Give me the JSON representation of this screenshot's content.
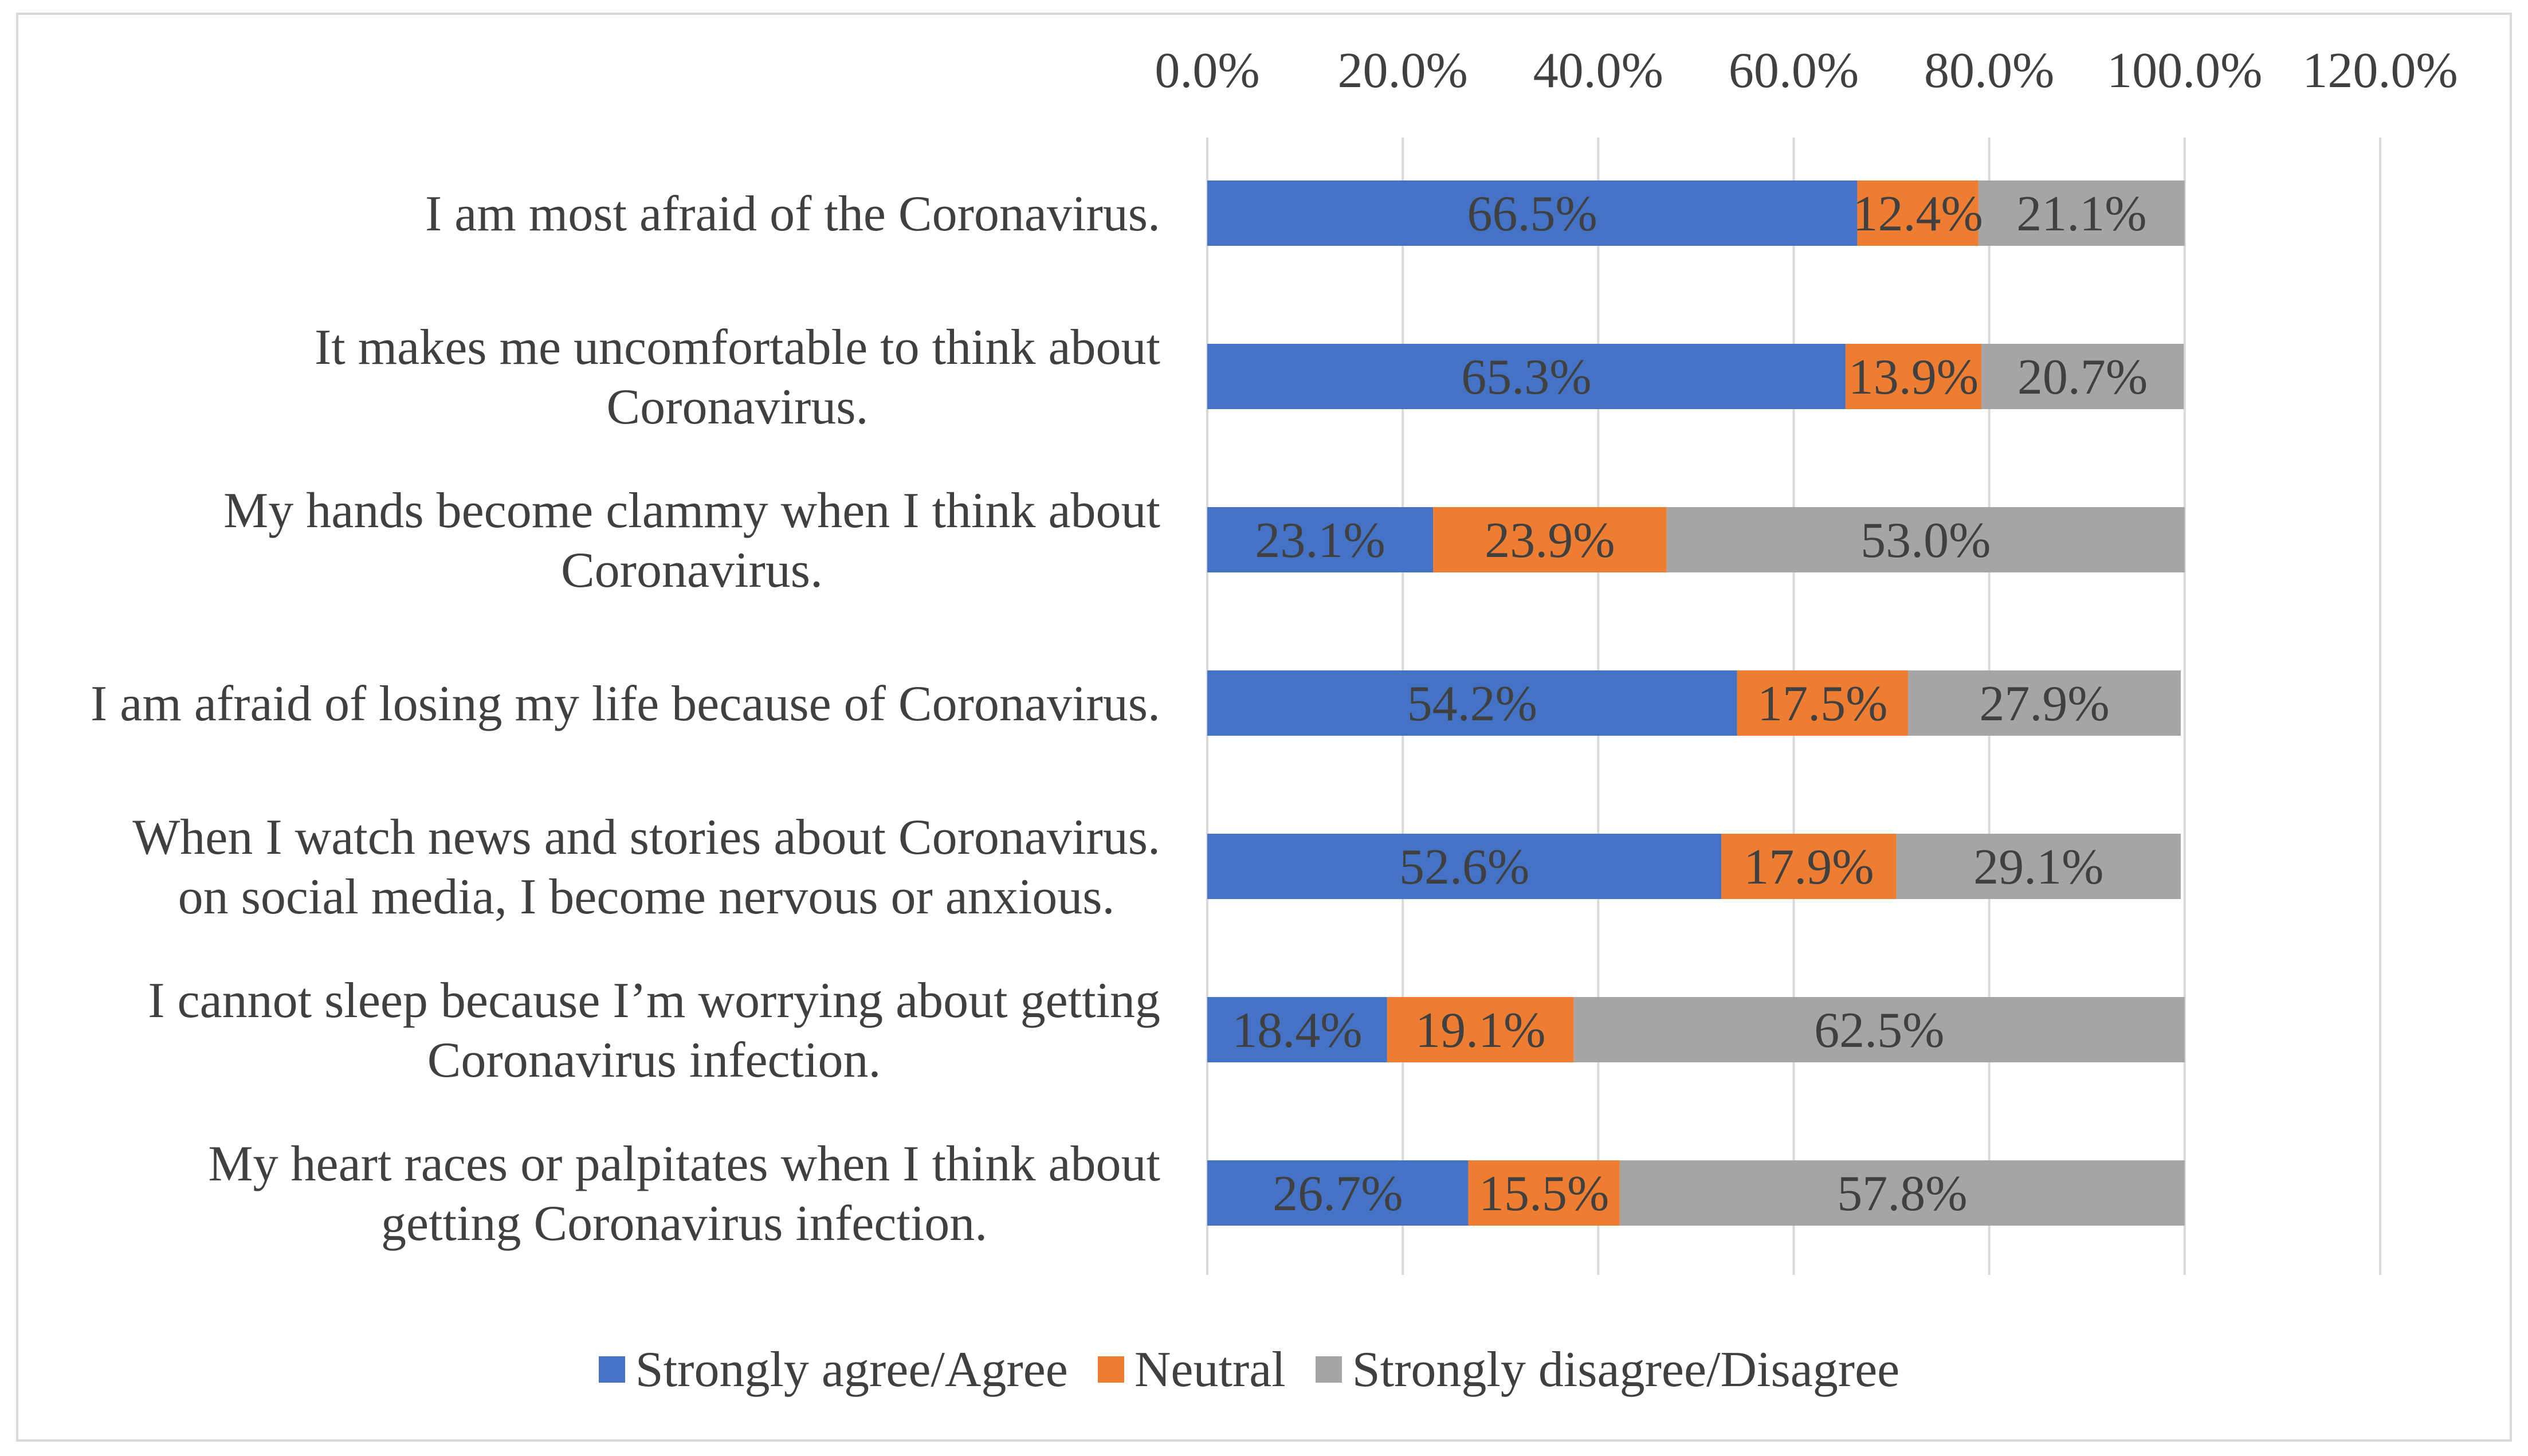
{
  "chart_data": {
    "type": "bar",
    "orientation": "horizontal",
    "stacked": true,
    "title": "",
    "xlabel": "",
    "ylabel": "",
    "xlim": [
      0,
      120
    ],
    "x_ticks": [
      "0.0%",
      "20.0%",
      "40.0%",
      "60.0%",
      "80.0%",
      "100.0%",
      "120.0%"
    ],
    "x_tick_values": [
      0,
      20,
      40,
      60,
      80,
      100,
      120
    ],
    "x_axis_position": "top",
    "grid": true,
    "legend_position": "bottom",
    "categories": [
      [
        "I am most afraid of the Coronavirus."
      ],
      [
        "It makes me uncomfortable to think about",
        "Coronavirus."
      ],
      [
        "My hands become clammy when I think about",
        "Coronavirus."
      ],
      [
        "I am afraid of losing my life because of Coronavirus."
      ],
      [
        "When I watch news and stories about  Coronavirus.",
        "on social media, I become nervous or anxious."
      ],
      [
        "I cannot sleep because I’m worrying about getting",
        "Coronavirus infection."
      ],
      [
        "My heart races or palpitates when I think about",
        "getting  Coronavirus infection."
      ]
    ],
    "series": [
      {
        "name": "Strongly agree/Agree",
        "color": "#4472c4",
        "values": [
          66.5,
          65.3,
          23.1,
          54.2,
          52.6,
          18.4,
          26.7
        ],
        "labels": [
          "66.5%",
          "65.3%",
          "23.1%",
          "54.2%",
          "52.6%",
          "18.4%",
          "26.7%"
        ]
      },
      {
        "name": "Neutral",
        "color": "#ed7d31",
        "values": [
          12.4,
          13.9,
          23.9,
          17.5,
          17.9,
          19.1,
          15.5
        ],
        "labels": [
          "12.4%",
          "13.9%",
          "23.9%",
          "17.5%",
          "17.9%",
          "19.1%",
          "15.5%"
        ]
      },
      {
        "name": "Strongly disagree/Disagree",
        "color": "#a5a5a5",
        "values": [
          21.1,
          20.7,
          53.0,
          27.9,
          29.1,
          62.5,
          57.8
        ],
        "labels": [
          "21.1%",
          "20.7%",
          "53.0%",
          "27.9%",
          "29.1%",
          "62.5%",
          "57.8%"
        ]
      }
    ]
  }
}
